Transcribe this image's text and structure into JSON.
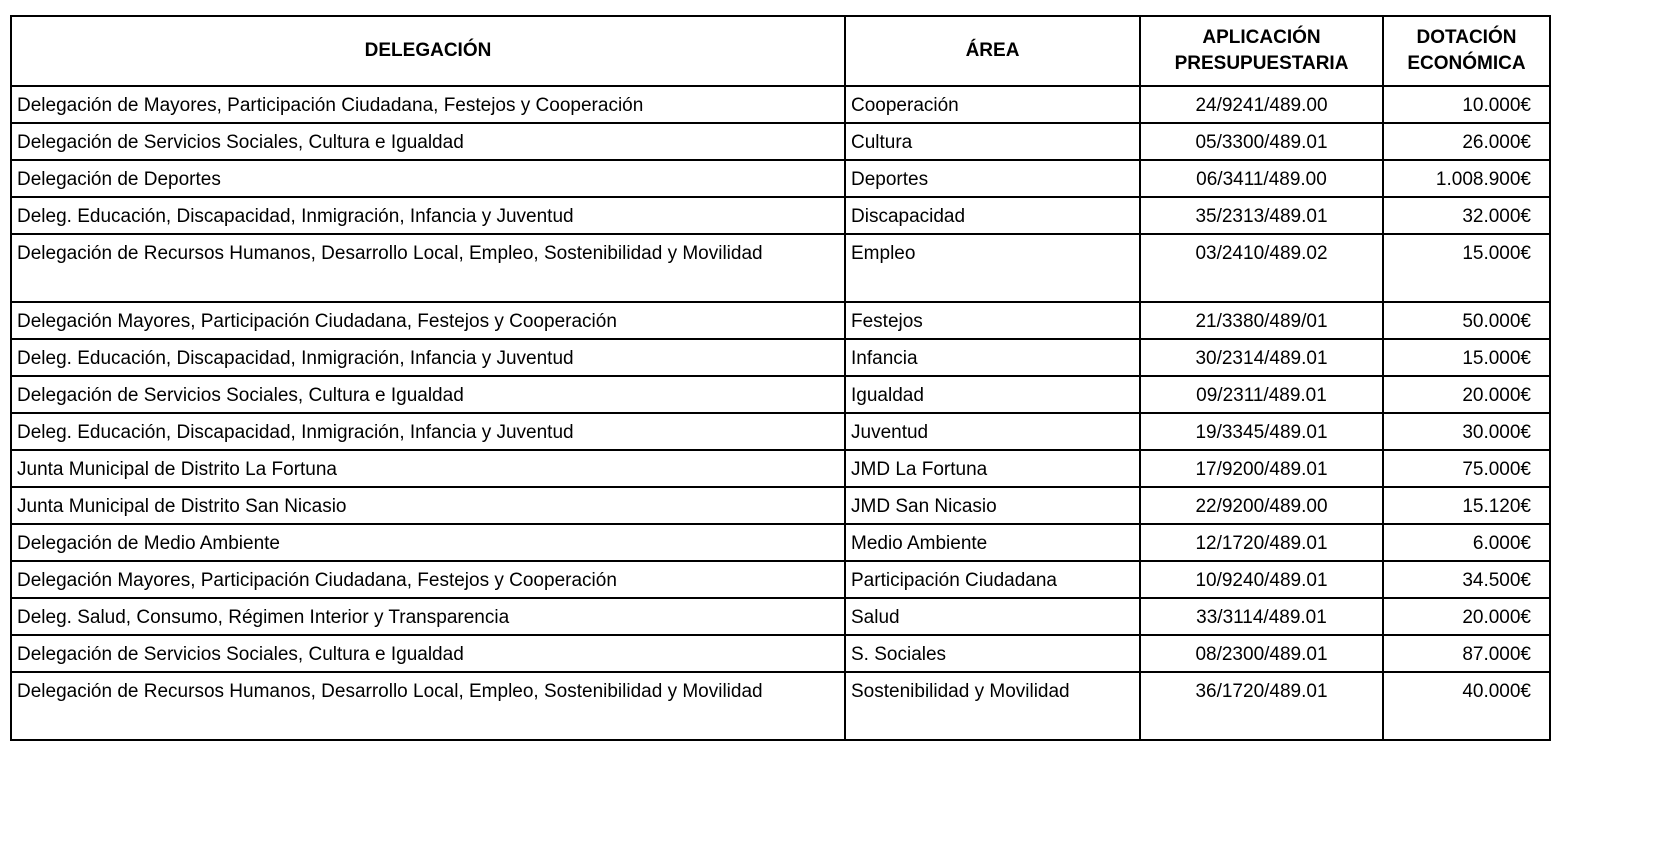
{
  "headers": [
    "DELEGACIÓN",
    "ÁREA",
    "APLICACIÓN PRESUPUESTARIA",
    "DOTACIÓN ECONÓMICA"
  ],
  "rows": [
    [
      "Delegación de Mayores, Participación Ciudadana, Festejos y Cooperación",
      "Cooperación",
      "24/9241/489.00",
      "10.000€"
    ],
    [
      "Delegación de Servicios Sociales, Cultura e Igualdad",
      "Cultura",
      "05/3300/489.01",
      "26.000€"
    ],
    [
      "Delegación de Deportes",
      "Deportes",
      "06/3411/489.00",
      "1.008.900€"
    ],
    [
      "Deleg. Educación, Discapacidad, Inmigración, Infancia y Juventud",
      "Discapacidad",
      "35/2313/489.01",
      "32.000€"
    ],
    [
      "Delegación de Recursos Humanos, Desarrollo Local, Empleo, Sostenibilidad y Movilidad",
      "Empleo",
      "03/2410/489.02",
      "15.000€"
    ],
    [
      "Delegación Mayores, Participación Ciudadana, Festejos y Cooperación",
      "Festejos",
      "21/3380/489/01",
      "50.000€"
    ],
    [
      "Deleg. Educación, Discapacidad, Inmigración, Infancia y Juventud",
      "Infancia",
      "30/2314/489.01",
      "15.000€"
    ],
    [
      "Delegación de Servicios Sociales, Cultura e Igualdad",
      "Igualdad",
      "09/2311/489.01",
      "20.000€"
    ],
    [
      "Deleg. Educación, Discapacidad, Inmigración, Infancia y Juventud",
      "Juventud",
      "19/3345/489.01",
      "30.000€"
    ],
    [
      "Junta Municipal de Distrito La Fortuna",
      "JMD La Fortuna",
      "17/9200/489.01",
      "75.000€"
    ],
    [
      "Junta Municipal de Distrito San Nicasio",
      "JMD San Nicasio",
      "22/9200/489.00",
      "15.120€"
    ],
    [
      "Delegación de Medio Ambiente",
      "Medio Ambiente",
      "12/1720/489.01",
      "6.000€"
    ],
    [
      "Delegación Mayores, Participación Ciudadana, Festejos y Cooperación",
      "Participación Ciudadana",
      "10/9240/489.01",
      "34.500€"
    ],
    [
      "Deleg. Salud, Consumo, Régimen Interior y Transparencia",
      "Salud",
      "33/3114/489.01",
      "20.000€"
    ],
    [
      "Delegación de Servicios Sociales, Cultura e Igualdad",
      "S. Sociales",
      "08/2300/489.01",
      "87.000€"
    ],
    [
      "Delegación de Recursos Humanos, Desarrollo Local, Empleo, Sostenibilidad y Movilidad",
      "Sostenibilidad y Movilidad",
      "36/1720/489.01",
      "40.000€"
    ]
  ]
}
